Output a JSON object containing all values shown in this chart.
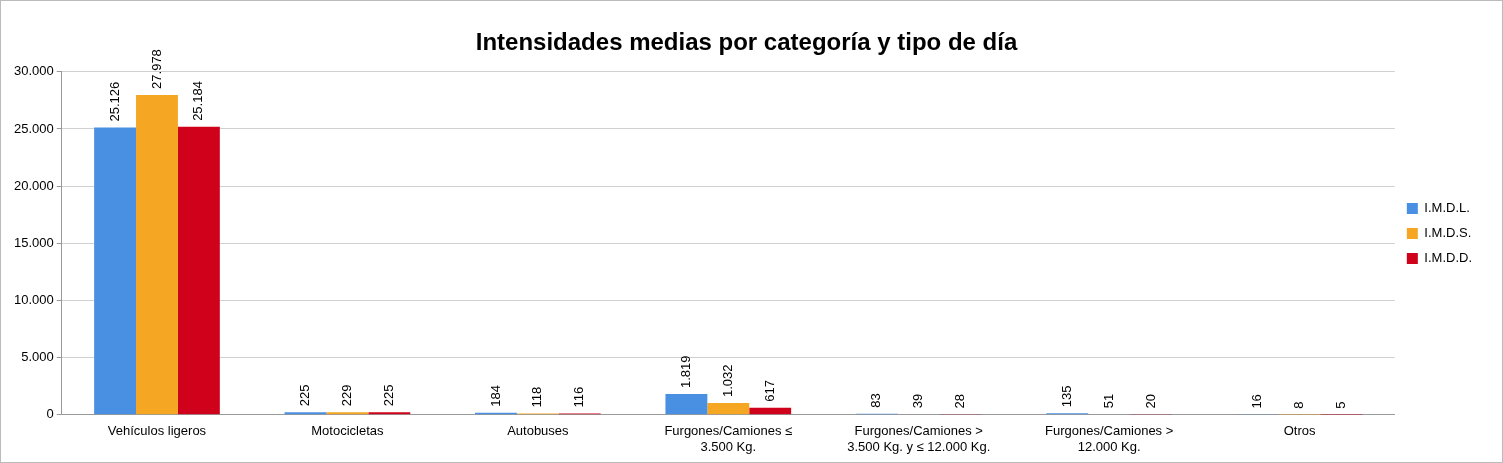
{
  "chart_data": {
    "type": "bar",
    "title": "Intensidades medias por categoría y tipo de día",
    "categories": [
      "Vehículos ligeros",
      "Motocicletas",
      "Autobuses",
      "Furgones/Camiones ≤ 3.500 Kg.",
      "Furgones/Camiones > 3.500 Kg. y ≤ 12.000 Kg.",
      "Furgones/Camiones > 12.000 Kg.",
      "Otros"
    ],
    "series": [
      {
        "name": "I.M.D.L.",
        "color": "#4a90e2",
        "values": [
          25126,
          225,
          184,
          1819,
          83,
          135,
          16
        ],
        "value_labels": [
          "25.126",
          "225",
          "184",
          "1.819",
          "83",
          "135",
          "16"
        ]
      },
      {
        "name": "I.M.D.S.",
        "color": "#f5a623",
        "values": [
          27978,
          229,
          118,
          1032,
          39,
          51,
          8
        ],
        "value_labels": [
          "27.978",
          "229",
          "118",
          "1.032",
          "39",
          "51",
          "8"
        ]
      },
      {
        "name": "I.M.D.D.",
        "color": "#d0021b",
        "values": [
          25184,
          225,
          116,
          617,
          28,
          20,
          5
        ],
        "value_labels": [
          "25.184",
          "225",
          "116",
          "617",
          "28",
          "20",
          "5"
        ]
      }
    ],
    "ylim": [
      0,
      30000
    ],
    "yticks": [
      0,
      {
        "value": 5000,
        "label": "5.000"
      },
      {
        "value": 10000,
        "label": "10.000"
      },
      {
        "value": 15000,
        "label": "15.000"
      },
      {
        "value": 20000,
        "label": "20.000"
      },
      {
        "value": 25000,
        "label": "25.000"
      },
      {
        "value": 30000,
        "label": "30.000"
      }
    ],
    "grid": "y",
    "legend": "right"
  }
}
